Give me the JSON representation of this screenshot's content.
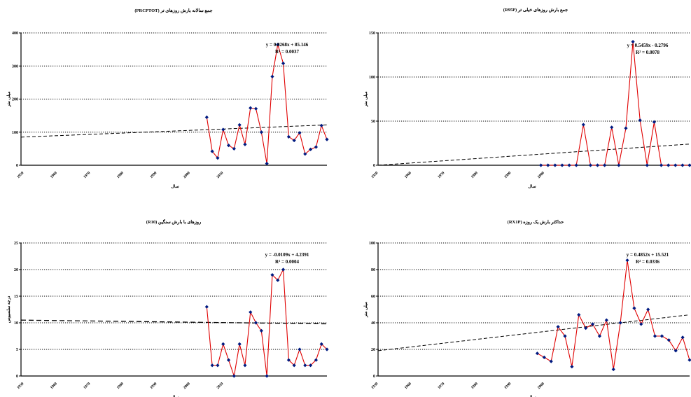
{
  "colors": {
    "series_line": "#e00000",
    "series_marker": "#001a80",
    "trend": "#000000",
    "grid": "#000000"
  },
  "watermark": "",
  "chart_data": [
    {
      "type": "line",
      "title": "جمع سالانه بارش روزهای تر (PRCPTOT)",
      "ylabel": "میلی متر",
      "xlabel": "سال",
      "x": [
        1983,
        1984,
        1985,
        1986,
        1987,
        1988,
        1989,
        1990,
        1991,
        1992,
        1993,
        1994,
        1995,
        1996,
        1997,
        1998,
        1999,
        2000,
        2001,
        2002,
        2003,
        2004,
        2005
      ],
      "values": [
        145,
        42,
        22,
        108,
        60,
        50,
        122,
        63,
        173,
        171,
        100,
        5,
        268,
        365,
        308,
        86,
        75,
        98,
        34,
        48,
        55,
        120,
        78
      ],
      "ylim": [
        0,
        400
      ],
      "yticks": [
        "0",
        "100",
        "200",
        "300",
        "400"
      ],
      "xtick_labels": [
        "1950",
        "1960",
        "1970",
        "1980",
        "1990",
        "2000",
        "2010"
      ],
      "trend": {
        "intercept": 85.146,
        "slope": 0.8268,
        "x_start": 1949,
        "x_end": 2005
      },
      "equation": "y = 0.8268x + 85.146",
      "r2": "R² = 0.0037",
      "grid": true
    },
    {
      "type": "line",
      "title": "جمع بارش روزهای خیلی تر (R95P)",
      "ylabel": "میلی متر",
      "xlabel": "سال",
      "x": [
        1973,
        1974,
        1975,
        1976,
        1977,
        1978,
        1979,
        1980,
        1981,
        1982,
        1983,
        1984,
        1985,
        1986,
        1987,
        1988,
        1989,
        1990,
        1991,
        1992,
        1993,
        1994
      ],
      "values": [
        0,
        0,
        0,
        0,
        0,
        0,
        46,
        0,
        0,
        0,
        43,
        0,
        42,
        140,
        51,
        0,
        49,
        0,
        0,
        0,
        0,
        0
      ],
      "ylim": [
        0,
        150
      ],
      "yticks": [
        "0",
        "50",
        "100",
        "150"
      ],
      "xtick_labels": [
        "1950",
        "1960",
        "1970",
        "1980",
        "1990",
        "2000"
      ],
      "trend": {
        "intercept": -0.2796,
        "slope": 0.5459,
        "x_start": 1950,
        "x_end": 1994
      },
      "equation": "y = 0.5459x - 0.2796",
      "r2": "R² = 0.0078",
      "grid": true
    },
    {
      "type": "line",
      "title": "روزهای با بارش سنگین (R10)",
      "ylabel": "درجه سلسیوس",
      "xlabel": "سال",
      "x": [
        1983,
        1984,
        1985,
        1986,
        1987,
        1988,
        1989,
        1990,
        1991,
        1992,
        1993,
        1994,
        1995,
        1996,
        1997,
        1998,
        1999,
        2000,
        2001,
        2002,
        2003,
        2004,
        2005
      ],
      "values": [
        13,
        2,
        2,
        6,
        3,
        0,
        6,
        2,
        12,
        10,
        8.5,
        0,
        19,
        18,
        20,
        3,
        2,
        5,
        2,
        2,
        3,
        6,
        5
      ],
      "ylim": [
        0,
        25
      ],
      "yticks": [
        "0",
        "5",
        "10",
        "15",
        "20",
        "25"
      ],
      "xtick_labels": [
        "1950",
        "1960",
        "1970",
        "1980",
        "1990",
        "2000",
        "2010"
      ],
      "trend": {
        "intercept": 4.2391,
        "slope": -0.0109,
        "x_start": 1949,
        "x_end": 2005
      },
      "equation": "y = -0.0109x + 4.2391",
      "r2": "R² = 0.0004",
      "grid": true
    },
    {
      "type": "line",
      "title": "حداکثر بارش یک روزه (RX1P)",
      "ylabel": "میلی متر",
      "xlabel": "سال",
      "x": [
        1973,
        1974,
        1975,
        1976,
        1977,
        1978,
        1979,
        1980,
        1981,
        1982,
        1983,
        1984,
        1985,
        1986,
        1987,
        1988,
        1989,
        1990,
        1991,
        1992,
        1993,
        1994,
        1995
      ],
      "values": [
        17,
        14,
        11,
        37,
        30,
        7,
        46,
        36,
        39,
        30,
        42,
        5,
        40,
        87,
        51,
        39,
        50,
        30,
        30,
        27,
        19,
        29,
        12
      ],
      "ylim": [
        0,
        100
      ],
      "yticks": [
        "0",
        "20",
        "40",
        "60",
        "80",
        "100"
      ],
      "xtick_labels": [
        "1950",
        "1960",
        "1970",
        "1980",
        "1990",
        "2000"
      ],
      "trend": {
        "intercept": 15.521,
        "slope": 0.4852,
        "x_start": 1950,
        "x_end": 1995
      },
      "equation": "y = 0.4852x + 15.521",
      "r2": "R² = 0.0336",
      "grid": true
    }
  ]
}
